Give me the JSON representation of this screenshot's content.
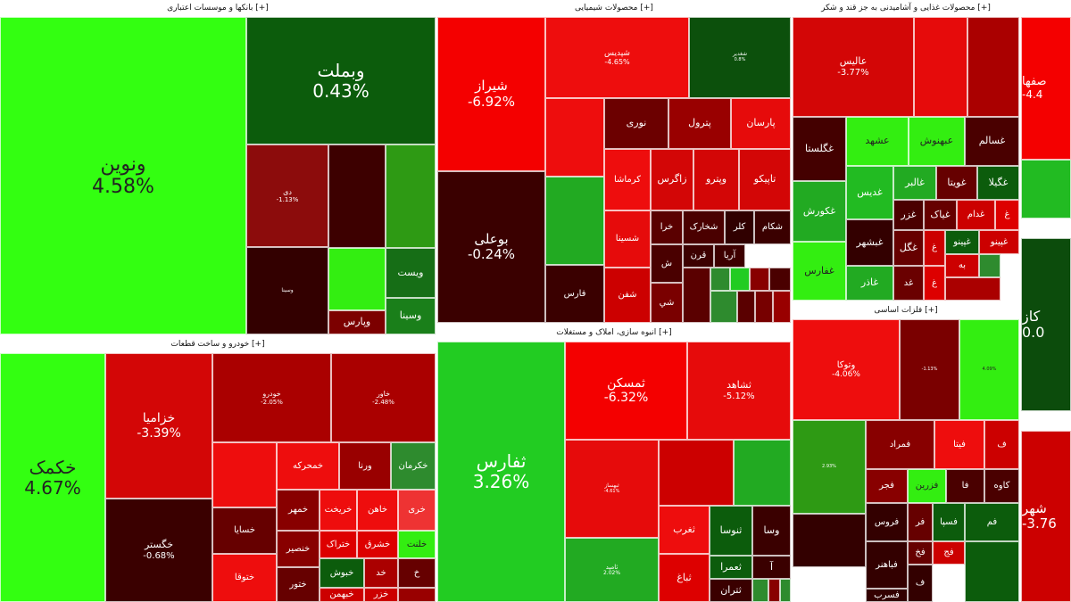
{
  "panels": [
    {
      "title": "بانکها و موسسات اعتباری [+]",
      "cells": [
        {
          "name": "ونوین",
          "pct": "4.58%",
          "color": "#33ff11",
          "dark": true
        },
        {
          "name": "وبملت",
          "pct": "0.43%",
          "color": "#0c5c0c"
        },
        {
          "name": "دی",
          "pct": "-1.13%",
          "color": "#8c0c0c"
        },
        {
          "name": "",
          "pct": "",
          "color": "#3d0000"
        },
        {
          "name": "",
          "pct": "",
          "color": "#2e9a14"
        },
        {
          "name": "وسینا",
          "pct": "",
          "color": "#330000"
        },
        {
          "name": "",
          "pct": "",
          "color": "#33ee11"
        },
        {
          "name": "ویست",
          "pct": "",
          "color": "#166e16"
        },
        {
          "name": "وسینا",
          "pct": "",
          "color": "#1a7f1a"
        },
        {
          "name": "وپارس",
          "pct": "",
          "color": "#7c0000"
        }
      ]
    },
    {
      "title": "محصولات شیمیایی [+]",
      "cells": [
        {
          "name": "شیراز",
          "pct": "-6.92%",
          "color": "#f40000"
        },
        {
          "name": "شپدیس",
          "pct": "-4.65%",
          "color": "#ee0d0d"
        },
        {
          "name": "شغدیر",
          "pct": "0.8%",
          "color": "#0c500c"
        },
        {
          "name": "بوعلی",
          "pct": "-0.24%",
          "color": "#3a0000"
        },
        {
          "name": "",
          "pct": "",
          "color": "#ee0d0d"
        },
        {
          "name": "نوری",
          "pct": "",
          "color": "#6c0000"
        },
        {
          "name": "پترول",
          "pct": "",
          "color": "#990000"
        },
        {
          "name": "پارسان",
          "pct": "",
          "color": "#e60b0b"
        },
        {
          "name": "",
          "pct": "",
          "color": "#22aa22"
        },
        {
          "name": "کرماشا",
          "pct": "",
          "color": "#ee0d0d"
        },
        {
          "name": "زاگرس",
          "pct": "",
          "color": "#d30606"
        },
        {
          "name": "وپترو",
          "pct": "",
          "color": "#d30606"
        },
        {
          "name": "تاپیکو",
          "pct": "",
          "color": "#d30606"
        },
        {
          "name": "خرا",
          "pct": "",
          "color": "#5a0000"
        },
        {
          "name": "شخارک",
          "pct": "",
          "color": "#4a0000"
        },
        {
          "name": "کلر",
          "pct": "",
          "color": "#300000"
        },
        {
          "name": "شکام",
          "pct": "",
          "color": "#3a0000"
        },
        {
          "name": "شسینا",
          "pct": "",
          "color": "#e60b0b"
        },
        {
          "name": "قرن",
          "pct": "",
          "color": "#3d0000"
        },
        {
          "name": "آریا",
          "pct": "",
          "color": "#3d0000"
        },
        {
          "name": "ش",
          "pct": "",
          "color": "#4a0000"
        },
        {
          "name": "فارس",
          "pct": "",
          "color": "#3a0000"
        },
        {
          "name": "شفن",
          "pct": "",
          "color": "#cc0000"
        },
        {
          "name": "شي",
          "pct": "",
          "color": "#7a0000"
        },
        {
          "name": "",
          "pct": "",
          "color": "#5a0000"
        },
        {
          "name": "",
          "pct": "",
          "color": "#2e8b2e"
        },
        {
          "name": "",
          "pct": "",
          "color": "#22cc22"
        },
        {
          "name": "",
          "pct": "",
          "color": "#880000"
        },
        {
          "name": "",
          "pct": "",
          "color": "#4a0000"
        },
        {
          "name": "",
          "pct": "",
          "color": "#2e8b2e"
        },
        {
          "name": "",
          "pct": "",
          "color": "#5a0000"
        },
        {
          "name": "",
          "pct": "",
          "color": "#770000"
        },
        {
          "name": "",
          "pct": "",
          "color": "#990000"
        }
      ]
    },
    {
      "title": "محصولات غذایی و آشامیدنی به جز قند و شکر [+]",
      "cells": [
        {
          "name": "عالیس",
          "pct": "-3.77%",
          "color": "#d30606"
        },
        {
          "name": "",
          "pct": "",
          "color": "#e60b0b"
        },
        {
          "name": "",
          "pct": "",
          "color": "#aa0000"
        },
        {
          "name": "غگلستا",
          "pct": "",
          "color": "#440000"
        },
        {
          "name": "عشهد",
          "pct": "",
          "color": "#33ee11",
          "dark": true
        },
        {
          "name": "عبهنوش",
          "pct": "",
          "color": "#33ee11",
          "dark": true
        },
        {
          "name": "غسالم",
          "pct": "",
          "color": "#4a0000"
        },
        {
          "name": "غکورش",
          "pct": "",
          "color": "#22aa22"
        },
        {
          "name": "غدیس",
          "pct": "",
          "color": "#22bb22"
        },
        {
          "name": "غالبر",
          "pct": "",
          "color": "#22aa22"
        },
        {
          "name": "غویتا",
          "pct": "",
          "color": "#660000"
        },
        {
          "name": "غگیلا",
          "pct": "",
          "color": "#0c5c0c"
        },
        {
          "name": "غزر",
          "pct": "",
          "color": "#4a0000"
        },
        {
          "name": "غیاک",
          "pct": "",
          "color": "#660000"
        },
        {
          "name": "غدام",
          "pct": "",
          "color": "#cc0000"
        },
        {
          "name": "غ",
          "pct": "",
          "color": "#dd0000"
        },
        {
          "name": "غفارس",
          "pct": "",
          "color": "#33ee11",
          "dark": true
        },
        {
          "name": "غبشهر",
          "pct": "",
          "color": "#330000"
        },
        {
          "name": "غگل",
          "pct": "",
          "color": "#660000"
        },
        {
          "name": "غ",
          "pct": "",
          "color": "#cc0000"
        },
        {
          "name": "غپینو",
          "pct": "",
          "color": "#0c5c0c"
        },
        {
          "name": "غپینو",
          "pct": "",
          "color": "#cc0000"
        },
        {
          "name": "غاذر",
          "pct": "",
          "color": "#22aa22"
        },
        {
          "name": "غد",
          "pct": "",
          "color": "#6a0000"
        },
        {
          "name": "غ",
          "pct": "",
          "color": "#dd0000"
        },
        {
          "name": "به",
          "pct": "",
          "color": "#cc0000"
        },
        {
          "name": "",
          "pct": "",
          "color": "#2e8b2e"
        },
        {
          "name": "",
          "pct": "",
          "color": "#aa0000"
        }
      ]
    },
    {
      "title": "خودرو و ساخت قطعات [+]",
      "cells": [
        {
          "name": "خکمک",
          "pct": "4.67%",
          "color": "#33ff11",
          "dark": true
        },
        {
          "name": "خزامیا",
          "pct": "-3.39%",
          "color": "#d30606"
        },
        {
          "name": "خودرو",
          "pct": "-2.05%",
          "color": "#aa0000"
        },
        {
          "name": "خاور",
          "pct": "-2.48%",
          "color": "#aa0000"
        },
        {
          "name": "خگستر",
          "pct": "-0.68%",
          "color": "#3a0000"
        },
        {
          "name": "",
          "pct": "",
          "color": "#ee0d0d"
        },
        {
          "name": "خمحرکه",
          "pct": "",
          "color": "#ee0d0d"
        },
        {
          "name": "ورنا",
          "pct": "",
          "color": "#990000"
        },
        {
          "name": "خکرمان",
          "pct": "",
          "color": "#2e8b2e"
        },
        {
          "name": "خمهر",
          "pct": "",
          "color": "#880000"
        },
        {
          "name": "خریخت",
          "pct": "",
          "color": "#ee0d0d"
        },
        {
          "name": "خاهن",
          "pct": "",
          "color": "#ee0d0d"
        },
        {
          "name": "خری",
          "pct": "",
          "color": "#ee3333"
        },
        {
          "name": "خسایا",
          "pct": "",
          "color": "#660000"
        },
        {
          "name": "خشرق",
          "pct": "",
          "color": "#dd0000"
        },
        {
          "name": "ختراک",
          "pct": "",
          "color": "#dd0000"
        },
        {
          "name": "خلنت",
          "pct": "",
          "color": "#33ee11",
          "dark": true
        },
        {
          "name": "خنصیر",
          "pct": "",
          "color": "#880000"
        },
        {
          "name": "خبوش",
          "pct": "",
          "color": "#0c5c0c"
        },
        {
          "name": "خد",
          "pct": "",
          "color": "#aa0000"
        },
        {
          "name": "خ",
          "pct": "",
          "color": "#660000"
        },
        {
          "name": "ختوقا",
          "pct": "",
          "color": "#ee0d0d"
        },
        {
          "name": "ختور",
          "pct": "",
          "color": "#660000"
        },
        {
          "name": "خبهمن",
          "pct": "",
          "color": "#cc0000"
        },
        {
          "name": "خزر",
          "pct": "",
          "color": "#cc0000"
        },
        {
          "name": "",
          "pct": "",
          "color": "#990000"
        }
      ]
    },
    {
      "title": "انبوه سازی، املاک و مستغلات [+]",
      "cells": [
        {
          "name": "ثفارس",
          "pct": "3.26%",
          "color": "#22cc22"
        },
        {
          "name": "ثمسکن",
          "pct": "-6.32%",
          "color": "#f40000"
        },
        {
          "name": "ثشاهد",
          "pct": "-5.12%",
          "color": "#e60b0b"
        },
        {
          "name": "ثبهساز",
          "pct": "-4.61%",
          "color": "#e60b0b"
        },
        {
          "name": "",
          "pct": "",
          "color": "#cc0000"
        },
        {
          "name": "",
          "pct": "",
          "color": "#22aa22"
        },
        {
          "name": "ثامید",
          "pct": "2.02%",
          "color": "#22aa22"
        },
        {
          "name": "ثنوسا",
          "pct": "",
          "color": "#0c5c0c"
        },
        {
          "name": "وسا",
          "pct": "",
          "color": "#3a0000"
        },
        {
          "name": "ثعمرا",
          "pct": "",
          "color": "#0c5c0c"
        },
        {
          "name": "آ",
          "pct": "",
          "color": "#3a0000"
        },
        {
          "name": "ثغرب",
          "pct": "",
          "color": "#ee0d0d"
        },
        {
          "name": "ثباغ",
          "pct": "",
          "color": "#dd0000"
        },
        {
          "name": "ثتران",
          "pct": "",
          "color": "#3a0000"
        },
        {
          "name": "",
          "pct": "",
          "color": "#2e8b2e"
        },
        {
          "name": "",
          "pct": "",
          "color": "#880000"
        },
        {
          "name": "",
          "pct": "",
          "color": "#2e8b2e"
        }
      ]
    },
    {
      "title": "فلزات اساسی [+]",
      "cells": [
        {
          "name": "وتوکا",
          "pct": "-4.06%",
          "color": "#ee0d0d"
        },
        {
          "name": "",
          "pct": "-1.13%",
          "color": "#7a0000"
        },
        {
          "name": "",
          "pct": "4.09%",
          "color": "#33ee11",
          "dark": true
        },
        {
          "name": "",
          "pct": "2.93%",
          "color": "#2e9a14"
        },
        {
          "name": "فمراد",
          "pct": "",
          "color": "#880000"
        },
        {
          "name": "فیتا",
          "pct": "",
          "color": "#ee0d0d"
        },
        {
          "name": "ف",
          "pct": "",
          "color": "#cc0000"
        },
        {
          "name": "فجر",
          "pct": "",
          "color": "#880000"
        },
        {
          "name": "فزرین",
          "pct": "",
          "color": "#33ee11",
          "dark": true
        },
        {
          "name": "فا",
          "pct": "",
          "color": "#4a0000"
        },
        {
          "name": "کاوه",
          "pct": "",
          "color": "#4a0000"
        },
        {
          "name": "فروس",
          "pct": "",
          "color": "#330000"
        },
        {
          "name": "فر",
          "pct": "",
          "color": "#660000"
        },
        {
          "name": "فسپا",
          "pct": "",
          "color": "#0c5c0c"
        },
        {
          "name": "فم",
          "pct": "",
          "color": "#0c5c0c"
        },
        {
          "name": "",
          "pct": "",
          "color": "#330000"
        },
        {
          "name": "فباهنر",
          "pct": "",
          "color": "#330000"
        },
        {
          "name": "فخ",
          "pct": "",
          "color": "#660000"
        },
        {
          "name": "فج",
          "pct": "",
          "color": "#cc0000"
        },
        {
          "name": "فسرب",
          "pct": "",
          "color": "#330000"
        },
        {
          "name": "ف",
          "pct": "",
          "color": "#330000"
        },
        {
          "name": "",
          "pct": "",
          "color": "#0c5c0c"
        }
      ]
    },
    {
      "title": "",
      "cells": [
        {
          "name": "صفها",
          "pct": "-4.4",
          "color": "#f40000"
        },
        {
          "name": "",
          "pct": "",
          "color": "#22bb22"
        },
        {
          "name": "كاز",
          "pct": "0.0",
          "color": "#0c4c0c"
        },
        {
          "name": "شهر",
          "pct": "-3.76",
          "color": "#cc0000"
        }
      ]
    }
  ]
}
